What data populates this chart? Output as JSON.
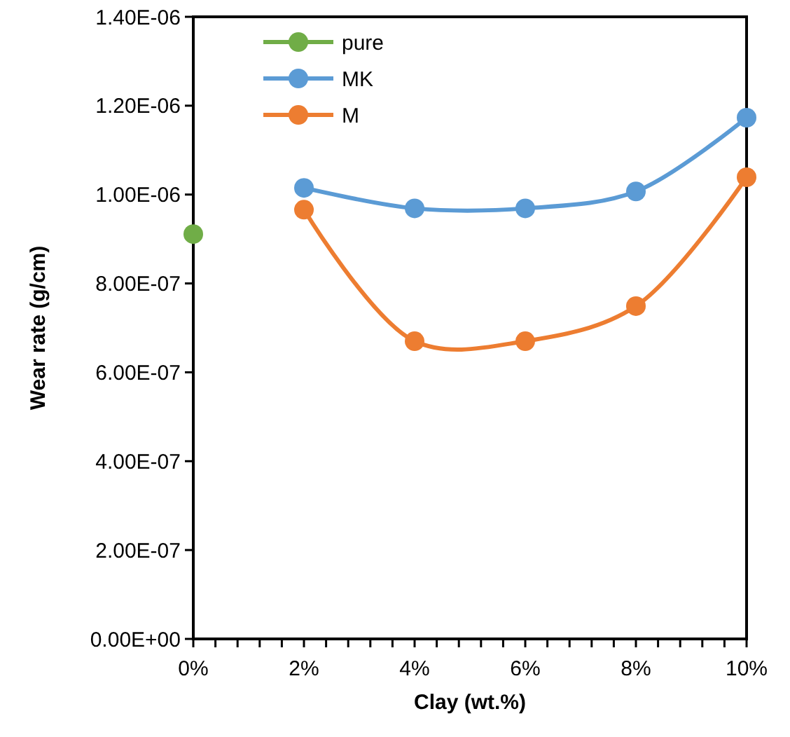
{
  "chart_data": {
    "type": "line",
    "xlabel": "Clay (wt.%)",
    "ylabel": "Wear rate (g/cm)",
    "xlim": [
      0,
      10
    ],
    "ylim": [
      0,
      1.4e-06
    ],
    "xticks": [
      {
        "value": 0,
        "label": "0%"
      },
      {
        "value": 0.4,
        "label": null
      },
      {
        "value": 0.8,
        "label": null
      },
      {
        "value": 1.2,
        "label": null
      },
      {
        "value": 1.6,
        "label": null
      },
      {
        "value": 2,
        "label": "2%"
      },
      {
        "value": 2.4,
        "label": null
      },
      {
        "value": 2.8,
        "label": null
      },
      {
        "value": 3.2,
        "label": null
      },
      {
        "value": 3.6,
        "label": null
      },
      {
        "value": 4,
        "label": "4%"
      },
      {
        "value": 4.4,
        "label": null
      },
      {
        "value": 4.8,
        "label": null
      },
      {
        "value": 5.2,
        "label": null
      },
      {
        "value": 5.6,
        "label": null
      },
      {
        "value": 6,
        "label": "6%"
      },
      {
        "value": 6.4,
        "label": null
      },
      {
        "value": 6.8,
        "label": null
      },
      {
        "value": 7.2,
        "label": null
      },
      {
        "value": 7.6,
        "label": null
      },
      {
        "value": 8,
        "label": "8%"
      },
      {
        "value": 8.4,
        "label": null
      },
      {
        "value": 8.8,
        "label": null
      },
      {
        "value": 9.2,
        "label": null
      },
      {
        "value": 9.6,
        "label": null
      },
      {
        "value": 10,
        "label": "10%"
      }
    ],
    "yticks": [
      {
        "value": 0,
        "label": "0.00E+00"
      },
      {
        "value": 2e-07,
        "label": "2.00E-07"
      },
      {
        "value": 4e-07,
        "label": "4.00E-07"
      },
      {
        "value": 6e-07,
        "label": "6.00E-07"
      },
      {
        "value": 8e-07,
        "label": "8.00E-07"
      },
      {
        "value": 1e-06,
        "label": "1.00E-06"
      },
      {
        "value": 1.2e-06,
        "label": "1.20E-06"
      },
      {
        "value": 1.4e-06,
        "label": "1.40E-06"
      }
    ],
    "grid": false,
    "legend": "top left",
    "marker": "circle",
    "line_style": "solid",
    "series": [
      {
        "name": "pure",
        "color": "#70ad47",
        "x": [
          0
        ],
        "values": [
          9.11e-07
        ]
      },
      {
        "name": "MK",
        "color": "#5b9bd5",
        "x": [
          2,
          4,
          6,
          8,
          10
        ],
        "values": [
          1.015e-06,
          9.69e-07,
          9.69e-07,
          1.007e-06,
          1.173e-06
        ]
      },
      {
        "name": "M",
        "color": "#ed7d31",
        "x": [
          2,
          4,
          6,
          8,
          10
        ],
        "values": [
          9.66e-07,
          6.7e-07,
          6.7e-07,
          7.49e-07,
          1.039e-06
        ]
      }
    ]
  }
}
